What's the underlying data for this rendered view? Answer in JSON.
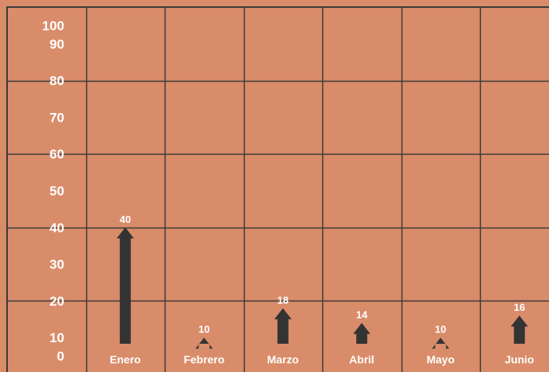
{
  "chart_data": {
    "type": "bar",
    "mark_shape": "arrow",
    "categories": [
      "Enero",
      "Febrero",
      "Marzo",
      "Abril",
      "Mayo",
      "Junio"
    ],
    "values": [
      40,
      10,
      18,
      14,
      10,
      16
    ],
    "data_labels": [
      "40",
      "10",
      "18",
      "14",
      "10",
      "16"
    ],
    "ylim": [
      0,
      100
    ],
    "yticks": [
      "0",
      "10",
      "20",
      "30",
      "40",
      "50",
      "60",
      "70",
      "80",
      "90",
      "100"
    ],
    "grid": true,
    "colors": {
      "background": "#d98c6a",
      "grid": "#3a3a3a",
      "bar": "#333333",
      "text": "#ffffff"
    }
  }
}
